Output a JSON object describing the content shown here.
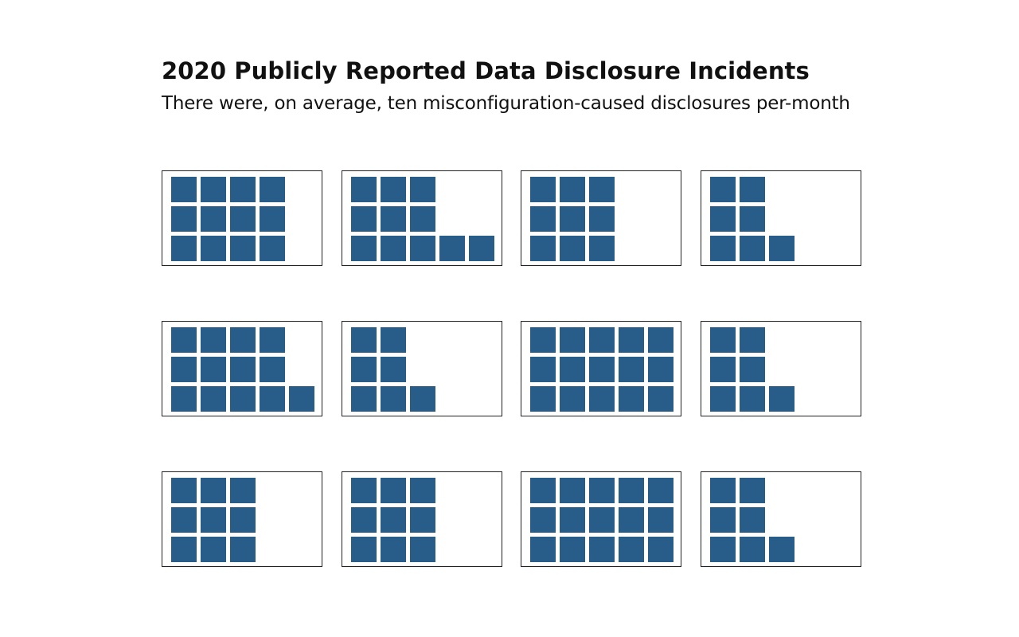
{
  "chart_title": "2020 Publicly Reported Data Disclosure Incidents",
  "chart_subtitle": "There were, on average, ten misconfiguration-caused disclosures per-month",
  "colors": {
    "square": "#285d8a",
    "panel_border": "#222222",
    "background": "#ffffff"
  },
  "chart_data": {
    "type": "waffle",
    "unit": "incident",
    "rows_per_panel": 3,
    "values": [
      12,
      11,
      9,
      7,
      13,
      7,
      15,
      7,
      9,
      9,
      15,
      7
    ]
  }
}
